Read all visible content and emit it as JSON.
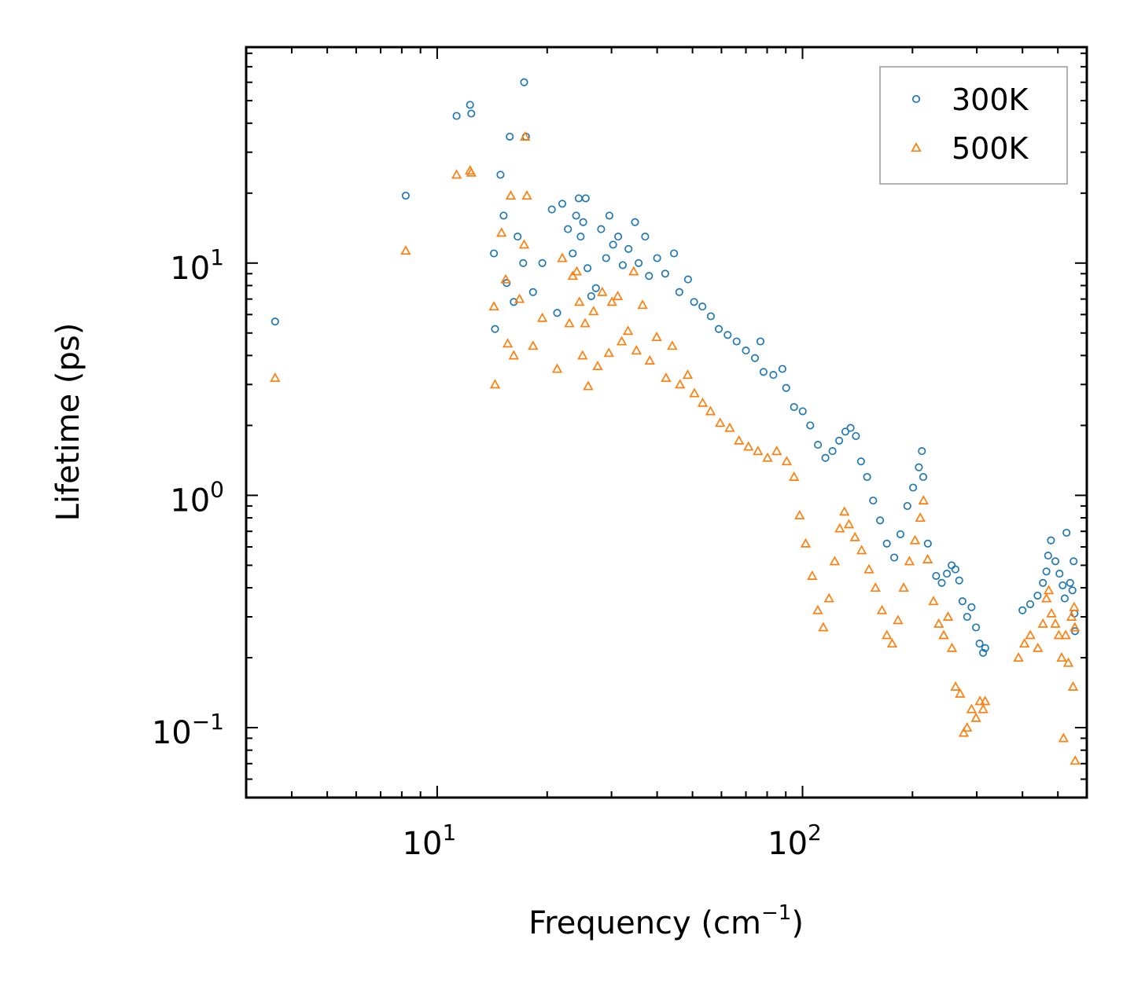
{
  "chart_data": {
    "type": "scatter",
    "title": "",
    "xlabel": "Frequency (cm",
    "xlabel_sup": "−1",
    "xlabel_tail": ")",
    "ylabel": "Lifetime (ps)",
    "xscale": "log",
    "yscale": "log",
    "xlim": [
      3.0,
      600.0
    ],
    "ylim": [
      0.05,
      85.0
    ],
    "x_ticks": [
      {
        "value": 10,
        "base": "10",
        "exp": "1"
      },
      {
        "value": 100,
        "base": "10",
        "exp": "2"
      }
    ],
    "y_ticks": [
      {
        "value": 0.1,
        "base": "10",
        "exp": "−1"
      },
      {
        "value": 1,
        "base": "10",
        "exp": "0"
      },
      {
        "value": 10,
        "base": "10",
        "exp": "1"
      }
    ],
    "legend_position": "top-right",
    "series": [
      {
        "name": "300K",
        "marker": "circle",
        "color": "#1f77b4",
        "points": [
          [
            3.6,
            5.6
          ],
          [
            8.2,
            19.5
          ],
          [
            11.3,
            43
          ],
          [
            12.3,
            48
          ],
          [
            12.4,
            44
          ],
          [
            14.3,
            11
          ],
          [
            14.4,
            5.2
          ],
          [
            14.9,
            24
          ],
          [
            15.2,
            16
          ],
          [
            15.5,
            8.2
          ],
          [
            15.8,
            35
          ],
          [
            16.2,
            6.8
          ],
          [
            16.6,
            13
          ],
          [
            17.2,
            10
          ],
          [
            17.3,
            60
          ],
          [
            17.5,
            35
          ],
          [
            18.3,
            7.5
          ],
          [
            19.4,
            10
          ],
          [
            20.6,
            17
          ],
          [
            21.3,
            6.1
          ],
          [
            22.0,
            18
          ],
          [
            22.8,
            14
          ],
          [
            23.5,
            11
          ],
          [
            24.0,
            16
          ],
          [
            24.4,
            19
          ],
          [
            24.7,
            13
          ],
          [
            25.1,
            15
          ],
          [
            25.5,
            19
          ],
          [
            25.8,
            9.5
          ],
          [
            26.4,
            7.2
          ],
          [
            27.2,
            7.8
          ],
          [
            28.1,
            14
          ],
          [
            29.0,
            10.5
          ],
          [
            29.6,
            16
          ],
          [
            30.3,
            12
          ],
          [
            31.3,
            13
          ],
          [
            32.2,
            9.8
          ],
          [
            33.4,
            11.5
          ],
          [
            34.8,
            15
          ],
          [
            35.6,
            10
          ],
          [
            37.1,
            13
          ],
          [
            38.0,
            8.8
          ],
          [
            40.0,
            10.5
          ],
          [
            42.1,
            9
          ],
          [
            44.5,
            11
          ],
          [
            46.0,
            7.5
          ],
          [
            48.6,
            8.5
          ],
          [
            50.5,
            6.8
          ],
          [
            53.2,
            6.5
          ],
          [
            56.1,
            5.9
          ],
          [
            59.0,
            5.2
          ],
          [
            62.4,
            4.9
          ],
          [
            66.0,
            4.6
          ],
          [
            70.0,
            4.2
          ],
          [
            74.1,
            3.9
          ],
          [
            76.7,
            4.6
          ],
          [
            78.2,
            3.4
          ],
          [
            83.2,
            3.3
          ],
          [
            88.1,
            3.5
          ],
          [
            90.2,
            2.9
          ],
          [
            94.8,
            2.4
          ],
          [
            100.1,
            2.3
          ],
          [
            105.0,
            2.0
          ],
          [
            110.2,
            1.65
          ],
          [
            115.5,
            1.45
          ],
          [
            120.8,
            1.55
          ],
          [
            126.0,
            1.72
          ],
          [
            131.0,
            1.88
          ],
          [
            135.4,
            1.95
          ],
          [
            140.0,
            1.8
          ],
          [
            144.6,
            1.4
          ],
          [
            150.2,
            1.2
          ],
          [
            156.1,
            0.95
          ],
          [
            163.0,
            0.78
          ],
          [
            170.1,
            0.62
          ],
          [
            178.2,
            0.54
          ],
          [
            185.4,
            0.68
          ],
          [
            193.6,
            0.9
          ],
          [
            200.8,
            1.08
          ],
          [
            208.1,
            1.32
          ],
          [
            212.2,
            1.55
          ],
          [
            214.0,
            1.2
          ],
          [
            220.2,
            0.62
          ],
          [
            232.1,
            0.45
          ],
          [
            240.4,
            0.42
          ],
          [
            248.5,
            0.46
          ],
          [
            256.0,
            0.5
          ],
          [
            262.1,
            0.48
          ],
          [
            268.4,
            0.43
          ],
          [
            274.0,
            0.35
          ],
          [
            282.2,
            0.3
          ],
          [
            290.1,
            0.33
          ],
          [
            298.5,
            0.27
          ],
          [
            305.2,
            0.23
          ],
          [
            312.0,
            0.21
          ],
          [
            316.3,
            0.22
          ],
          [
            400.0,
            0.32
          ],
          [
            420.0,
            0.34
          ],
          [
            440.0,
            0.37
          ],
          [
            455.0,
            0.42
          ],
          [
            465.0,
            0.47
          ],
          [
            470.2,
            0.55
          ],
          [
            478.6,
            0.64
          ],
          [
            492.1,
            0.52
          ],
          [
            505.2,
            0.46
          ],
          [
            515.3,
            0.41
          ],
          [
            522.1,
            0.36
          ],
          [
            528.0,
            0.69
          ],
          [
            540.2,
            0.42
          ],
          [
            548.0,
            0.39
          ],
          [
            552.1,
            0.52
          ],
          [
            555.0,
            0.31
          ],
          [
            557.0,
            0.26
          ]
        ]
      },
      {
        "name": "500K",
        "marker": "triangle",
        "color": "#ff7f0e",
        "points": [
          [
            3.6,
            3.2
          ],
          [
            8.2,
            11.3
          ],
          [
            11.3,
            24
          ],
          [
            12.3,
            25
          ],
          [
            12.4,
            24.5
          ],
          [
            14.3,
            6.5
          ],
          [
            14.4,
            3.0
          ],
          [
            15.0,
            13.5
          ],
          [
            15.4,
            8.5
          ],
          [
            15.6,
            4.5
          ],
          [
            15.9,
            19.5
          ],
          [
            16.2,
            4.0
          ],
          [
            16.8,
            7.0
          ],
          [
            17.3,
            12
          ],
          [
            17.4,
            35
          ],
          [
            17.6,
            19.5
          ],
          [
            18.3,
            4.4
          ],
          [
            19.4,
            5.8
          ],
          [
            21.3,
            3.5
          ],
          [
            22.0,
            10.5
          ],
          [
            23.0,
            5.5
          ],
          [
            23.5,
            8.8
          ],
          [
            24.1,
            9.2
          ],
          [
            24.5,
            6.8
          ],
          [
            25.0,
            4.0
          ],
          [
            25.4,
            5.5
          ],
          [
            25.9,
            2.95
          ],
          [
            26.8,
            6.2
          ],
          [
            27.5,
            3.6
          ],
          [
            28.3,
            7.5
          ],
          [
            29.5,
            4.1
          ],
          [
            30.1,
            6.8
          ],
          [
            31.2,
            7.2
          ],
          [
            32.0,
            4.6
          ],
          [
            33.3,
            5.1
          ],
          [
            34.5,
            9.2
          ],
          [
            35.1,
            4.2
          ],
          [
            36.5,
            6.6
          ],
          [
            38.2,
            3.8
          ],
          [
            39.9,
            4.8
          ],
          [
            42.3,
            3.2
          ],
          [
            44.0,
            4.4
          ],
          [
            46.2,
            3.0
          ],
          [
            48.5,
            3.3
          ],
          [
            50.6,
            2.75
          ],
          [
            53.3,
            2.5
          ],
          [
            56.0,
            2.3
          ],
          [
            59.5,
            2.05
          ],
          [
            63.2,
            1.95
          ],
          [
            67.0,
            1.72
          ],
          [
            71.1,
            1.62
          ],
          [
            75.5,
            1.55
          ],
          [
            80.2,
            1.45
          ],
          [
            85.0,
            1.55
          ],
          [
            90.5,
            1.4
          ],
          [
            94.8,
            1.2
          ],
          [
            98.2,
            0.82
          ],
          [
            102.0,
            0.62
          ],
          [
            106.3,
            0.45
          ],
          [
            110.1,
            0.32
          ],
          [
            114.0,
            0.27
          ],
          [
            118.2,
            0.36
          ],
          [
            122.5,
            0.52
          ],
          [
            126.4,
            0.72
          ],
          [
            130.2,
            0.85
          ],
          [
            134.0,
            0.75
          ],
          [
            139.2,
            0.66
          ],
          [
            145.1,
            0.58
          ],
          [
            152.0,
            0.48
          ],
          [
            158.3,
            0.4
          ],
          [
            165.0,
            0.32
          ],
          [
            170.1,
            0.25
          ],
          [
            176.0,
            0.23
          ],
          [
            182.5,
            0.29
          ],
          [
            189.2,
            0.4
          ],
          [
            196.1,
            0.52
          ],
          [
            203.2,
            0.64
          ],
          [
            210.0,
            0.8
          ],
          [
            214.3,
            0.95
          ],
          [
            220.0,
            0.53
          ],
          [
            228.3,
            0.35
          ],
          [
            236.0,
            0.28
          ],
          [
            243.5,
            0.25
          ],
          [
            250.2,
            0.3
          ],
          [
            256.4,
            0.22
          ],
          [
            262.3,
            0.15
          ],
          [
            270.0,
            0.14
          ],
          [
            276.2,
            0.095
          ],
          [
            282.1,
            0.1
          ],
          [
            290.2,
            0.12
          ],
          [
            298.4,
            0.11
          ],
          [
            306.0,
            0.13
          ],
          [
            312.2,
            0.12
          ],
          [
            316.1,
            0.13
          ],
          [
            390.0,
            0.2
          ],
          [
            405.1,
            0.23
          ],
          [
            420.2,
            0.25
          ],
          [
            440.5,
            0.22
          ],
          [
            455.0,
            0.28
          ],
          [
            465.2,
            0.36
          ],
          [
            472.0,
            0.39
          ],
          [
            480.1,
            0.31
          ],
          [
            492.2,
            0.28
          ],
          [
            503.0,
            0.25
          ],
          [
            512.1,
            0.2
          ],
          [
            518.0,
            0.09
          ],
          [
            525.2,
            0.25
          ],
          [
            534.1,
            0.19
          ],
          [
            545.0,
            0.3
          ],
          [
            550.2,
            0.15
          ],
          [
            554.1,
            0.33
          ],
          [
            556.2,
            0.27
          ],
          [
            557.5,
            0.072
          ]
        ]
      }
    ]
  }
}
